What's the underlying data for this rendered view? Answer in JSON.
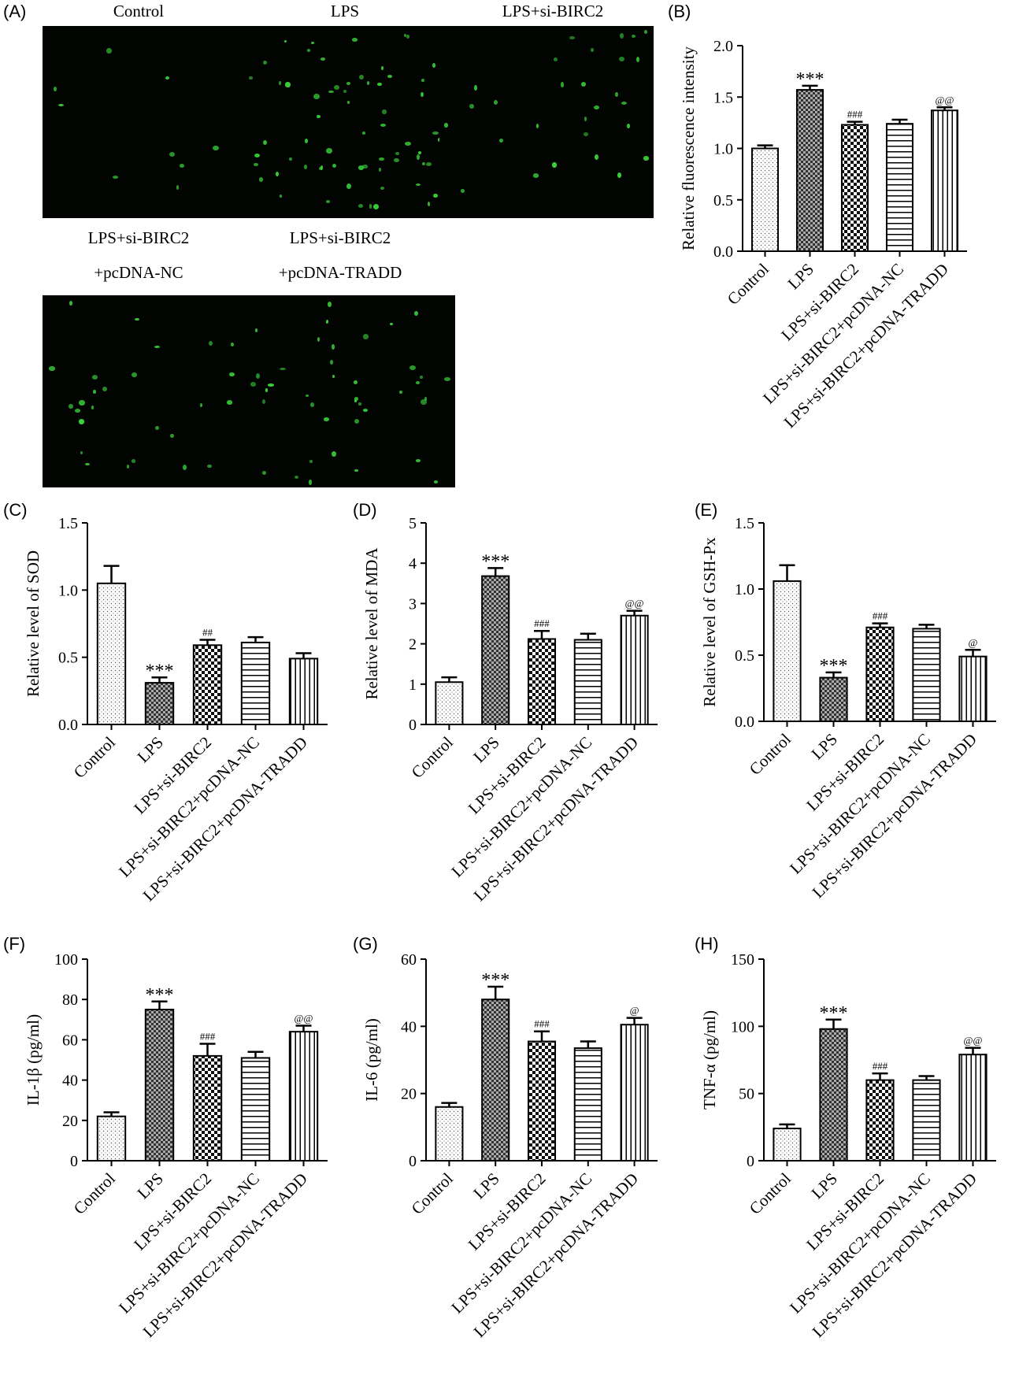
{
  "panels": {
    "A": {
      "label": "(A)",
      "images": [
        {
          "title": "Control",
          "title2": ""
        },
        {
          "title": "LPS",
          "title2": ""
        },
        {
          "title": "LPS+si-BIRC2",
          "title2": ""
        },
        {
          "title": "LPS+si-BIRC2",
          "title2": "+pcDNA-NC"
        },
        {
          "title": "LPS+si-BIRC2",
          "title2": "+pcDNA-TRADD"
        }
      ]
    },
    "B": {
      "label": "(B)"
    },
    "C": {
      "label": "(C)"
    },
    "D": {
      "label": "(D)"
    },
    "E": {
      "label": "(E)"
    },
    "F": {
      "label": "(F)"
    },
    "G": {
      "label": "(G)"
    },
    "H": {
      "label": "(H)"
    }
  },
  "chart_data": [
    {
      "id": "B",
      "type": "bar",
      "categories": [
        "Control",
        "LPS",
        "LPS+si-BIRC2",
        "LPS+si-BIRC2+pcDNA-NC",
        "LPS+si-BIRC2+pcDNA-TRADD"
      ],
      "values": [
        1.0,
        1.57,
        1.23,
        1.24,
        1.37
      ],
      "errors": [
        0.03,
        0.04,
        0.03,
        0.04,
        0.03
      ],
      "annotations": [
        "",
        "***",
        "###",
        "",
        "@@"
      ],
      "ylabel": "Relative fluorescence intensity",
      "ylim": [
        0,
        2.0
      ],
      "ticks": [
        "0.0",
        "0.5",
        "1.0",
        "1.5",
        "2.0"
      ]
    },
    {
      "id": "C",
      "type": "bar",
      "categories": [
        "Control",
        "LPS",
        "LPS+si-BIRC2",
        "LPS+si-BIRC2+pcDNA-NC",
        "LPS+si-BIRC2+pcDNA-TRADD"
      ],
      "values": [
        1.05,
        0.31,
        0.59,
        0.61,
        0.49
      ],
      "errors": [
        0.13,
        0.04,
        0.04,
        0.04,
        0.04
      ],
      "annotations": [
        "",
        "***",
        "##",
        "",
        ""
      ],
      "ylabel": "Relative level of SOD",
      "ylim": [
        0,
        1.5
      ],
      "ticks": [
        "0.0",
        "0.5",
        "1.0",
        "1.5"
      ]
    },
    {
      "id": "D",
      "type": "bar",
      "categories": [
        "Control",
        "LPS",
        "LPS+si-BIRC2",
        "LPS+si-BIRC2+pcDNA-NC",
        "LPS+si-BIRC2+pcDNA-TRADD"
      ],
      "values": [
        1.05,
        3.68,
        2.12,
        2.1,
        2.7
      ],
      "errors": [
        0.12,
        0.2,
        0.2,
        0.15,
        0.12
      ],
      "annotations": [
        "",
        "***",
        "###",
        "",
        "@@"
      ],
      "ylabel": "Relative level of MDA",
      "ylim": [
        0,
        5
      ],
      "ticks": [
        "0",
        "1",
        "2",
        "3",
        "4",
        "5"
      ]
    },
    {
      "id": "E",
      "type": "bar",
      "categories": [
        "Control",
        "LPS",
        "LPS+si-BIRC2",
        "LPS+si-BIRC2+pcDNA-NC",
        "LPS+si-BIRC2+pcDNA-TRADD"
      ],
      "values": [
        1.06,
        0.33,
        0.71,
        0.7,
        0.49
      ],
      "errors": [
        0.12,
        0.04,
        0.03,
        0.03,
        0.05
      ],
      "annotations": [
        "",
        "***",
        "###",
        "",
        "@"
      ],
      "ylabel": "Relative level of GSH-Px",
      "ylim": [
        0,
        1.5
      ],
      "ticks": [
        "0.0",
        "0.5",
        "1.0",
        "1.5"
      ]
    },
    {
      "id": "F",
      "type": "bar",
      "categories": [
        "Control",
        "LPS",
        "LPS+si-BIRC2",
        "LPS+si-BIRC2+pcDNA-NC",
        "LPS+si-BIRC2+pcDNA-TRADD"
      ],
      "values": [
        22,
        75,
        52,
        51,
        64
      ],
      "errors": [
        2,
        4,
        6,
        3,
        3
      ],
      "annotations": [
        "",
        "***",
        "###",
        "",
        "@@"
      ],
      "ylabel": "IL-1β (pg/ml)",
      "ylim": [
        0,
        100
      ],
      "ticks": [
        "0",
        "20",
        "40",
        "60",
        "80",
        "100"
      ]
    },
    {
      "id": "G",
      "type": "bar",
      "categories": [
        "Control",
        "LPS",
        "LPS+si-BIRC2",
        "LPS+si-BIRC2+pcDNA-NC",
        "LPS+si-BIRC2+pcDNA-TRADD"
      ],
      "values": [
        16,
        48,
        35.5,
        33.5,
        40.5
      ],
      "errors": [
        1.2,
        3.8,
        3,
        2,
        2
      ],
      "annotations": [
        "",
        "***",
        "###",
        "",
        "@"
      ],
      "ylabel": "IL-6 (pg/ml)",
      "ylim": [
        0,
        60
      ],
      "ticks": [
        "0",
        "20",
        "40",
        "60"
      ]
    },
    {
      "id": "H",
      "type": "bar",
      "categories": [
        "Control",
        "LPS",
        "LPS+si-BIRC2",
        "LPS+si-BIRC2+pcDNA-NC",
        "LPS+si-BIRC2+pcDNA-TRADD"
      ],
      "values": [
        24,
        98,
        60,
        60,
        79
      ],
      "errors": [
        3,
        7,
        5,
        3,
        5
      ],
      "annotations": [
        "",
        "***",
        "###",
        "",
        "@@"
      ],
      "ylabel": "TNF-α (pg/ml)",
      "ylim": [
        0,
        150
      ],
      "ticks": [
        "0",
        "50",
        "100",
        "150"
      ]
    }
  ],
  "bar_patterns": [
    "dots",
    "checker-dark",
    "checker-bold",
    "horizontal-lines",
    "vertical-lines"
  ]
}
